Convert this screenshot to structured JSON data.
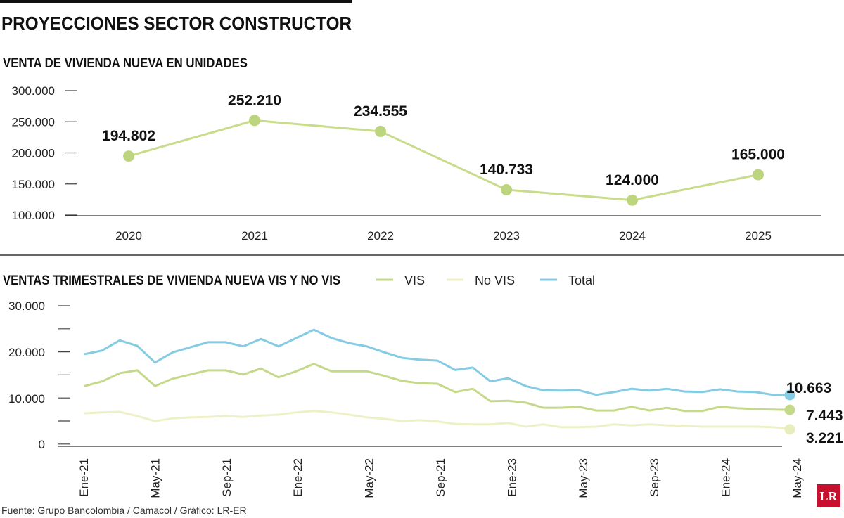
{
  "title": "PROYECCIONES SECTOR CONSTRUCTOR",
  "source": "Fuente: Grupo Bancolombia / Camacol / Gráfico: LR-ER",
  "logo_text": "LR",
  "chart_data": [
    {
      "type": "line",
      "title": "VENTA DE VIVIENDA NUEVA EN UNIDADES",
      "categories": [
        "2020",
        "2021",
        "2022",
        "2023",
        "2024",
        "2025"
      ],
      "values": [
        194802,
        252210,
        234555,
        140733,
        124000,
        165000
      ],
      "data_labels": [
        "194.802",
        "252.210",
        "234.555",
        "140.733",
        "124.000",
        "165.000"
      ],
      "ylim": [
        100000,
        300000
      ],
      "yticks": [
        "300.000",
        "250.000",
        "200.000",
        "150.000",
        "100.000"
      ],
      "color": "#c8dc8c",
      "grid": false
    },
    {
      "type": "line",
      "title": "VENTAS TRIMESTRALES DE VIVIENDA NUEVA VIS Y NO VIS",
      "x_start": "Ene-21",
      "x_end": "May-24",
      "xticks": [
        "Ene-21",
        "May-21",
        "Sep-21",
        "Ene-22",
        "May-22",
        "Sep-21",
        "Ene-23",
        "May-23",
        "Sep-23",
        "Ene-24",
        "May-24"
      ],
      "ylim": [
        0,
        30000
      ],
      "yticks": [
        "30.000",
        "20.000",
        "10.000",
        "0"
      ],
      "legend": "top",
      "grid": false,
      "series": [
        {
          "name": "VIS",
          "color": "#c5d98a",
          "end_label": "7.443",
          "values": [
            12600,
            13600,
            15400,
            16000,
            12600,
            14200,
            15100,
            16000,
            16000,
            15100,
            16400,
            14500,
            15800,
            17400,
            15800,
            15800,
            15800,
            14800,
            13700,
            13200,
            13100,
            11300,
            12000,
            9300,
            9400,
            9000,
            7900,
            7900,
            8100,
            7300,
            7300,
            8100,
            7300,
            7900,
            7200,
            7200,
            8100,
            7800,
            7600,
            7500,
            7443
          ]
        },
        {
          "name": "No VIS",
          "color": "#eef1c8",
          "end_label": "3.221",
          "values": [
            6700,
            6900,
            7000,
            6100,
            5000,
            5600,
            5800,
            5900,
            6100,
            5900,
            6200,
            6400,
            6900,
            7200,
            6900,
            6400,
            5800,
            5500,
            5000,
            5200,
            4900,
            4400,
            4300,
            4300,
            4600,
            3800,
            4300,
            3700,
            3700,
            3800,
            4300,
            4100,
            4300,
            4100,
            4000,
            3800,
            3800,
            3800,
            3800,
            3700,
            3221
          ]
        },
        {
          "name": "Total",
          "color": "#85cbe3",
          "end_label": "10.663",
          "values": [
            19500,
            20300,
            22500,
            21300,
            17700,
            19900,
            21000,
            22100,
            22100,
            21200,
            22800,
            21200,
            23000,
            24800,
            23000,
            21900,
            21200,
            19900,
            18700,
            18300,
            18100,
            16100,
            16600,
            13600,
            14300,
            12600,
            11700,
            11600,
            11700,
            10700,
            11300,
            12000,
            11600,
            12000,
            11400,
            11300,
            11900,
            11400,
            11300,
            10700,
            10663
          ]
        }
      ]
    }
  ]
}
